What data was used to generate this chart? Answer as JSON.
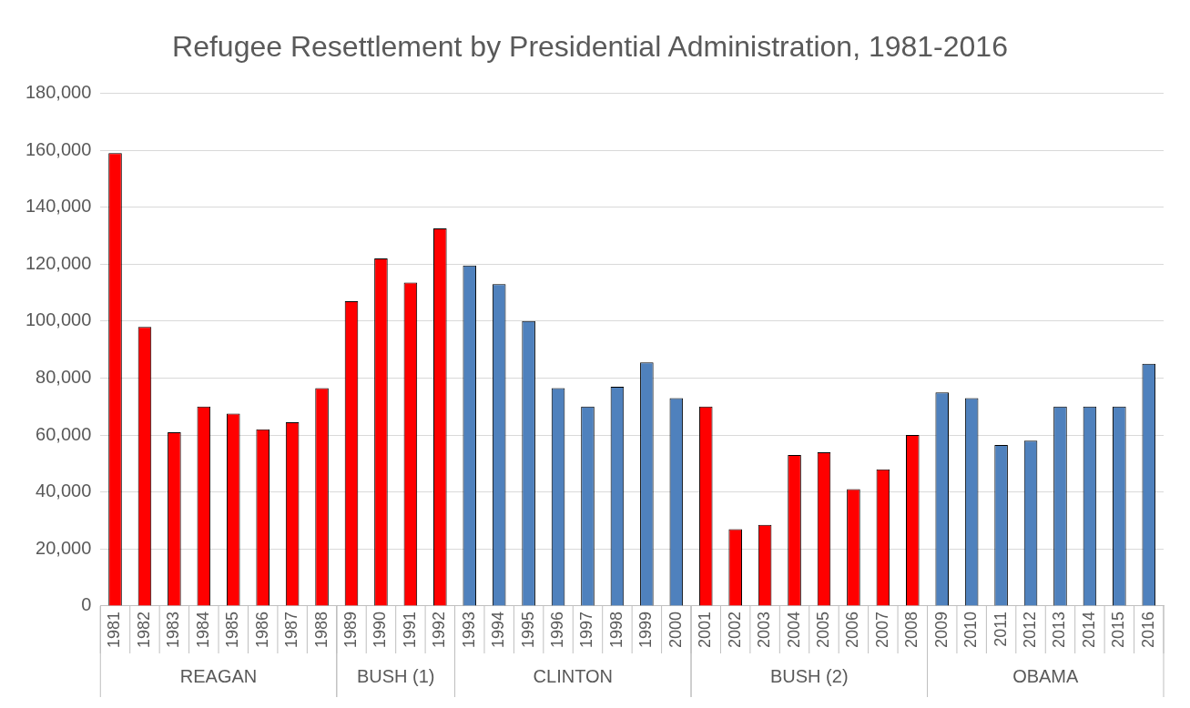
{
  "chart_data": {
    "type": "bar",
    "title": "Refugee Resettlement by Presidential Administration, 1981-2016",
    "categories": [
      "1981",
      "1982",
      "1983",
      "1984",
      "1985",
      "1986",
      "1987",
      "1988",
      "1989",
      "1990",
      "1991",
      "1992",
      "1993",
      "1994",
      "1995",
      "1996",
      "1997",
      "1998",
      "1999",
      "2000",
      "2001",
      "2002",
      "2003",
      "2004",
      "2005",
      "2006",
      "2007",
      "2008",
      "2009",
      "2010",
      "2011",
      "2012",
      "2013",
      "2014",
      "2015",
      "2016"
    ],
    "series": [
      {
        "color": "#ff0000",
        "values": [
          159000,
          98000,
          61000,
          70000,
          67500,
          62000,
          64500,
          76500,
          null,
          null,
          null,
          null,
          null,
          null,
          null,
          null,
          null,
          null,
          null,
          null,
          null,
          null,
          null,
          null,
          null,
          null,
          null,
          null,
          null,
          null,
          null,
          null,
          null,
          null,
          null,
          null
        ]
      },
      {
        "color": "#ff0000",
        "values": [
          null,
          null,
          null,
          null,
          null,
          null,
          null,
          null,
          107000,
          122000,
          113500,
          132500,
          null,
          null,
          null,
          null,
          null,
          null,
          null,
          null,
          null,
          null,
          null,
          null,
          null,
          null,
          null,
          null,
          null,
          null,
          null,
          null,
          null,
          null,
          null,
          null
        ]
      },
      {
        "color": "#4f81bd",
        "values": [
          null,
          null,
          null,
          null,
          null,
          null,
          null,
          null,
          null,
          null,
          null,
          null,
          119500,
          113000,
          100000,
          76500,
          70000,
          77000,
          85500,
          73000,
          null,
          null,
          null,
          null,
          null,
          null,
          null,
          null,
          null,
          null,
          null,
          null,
          null,
          null,
          null,
          null
        ]
      },
      {
        "color": "#ff0000",
        "values": [
          null,
          null,
          null,
          null,
          null,
          null,
          null,
          null,
          null,
          null,
          null,
          null,
          null,
          null,
          null,
          null,
          null,
          null,
          null,
          null,
          70000,
          27000,
          28500,
          53000,
          54000,
          41000,
          48000,
          60000,
          null,
          null,
          null,
          null,
          null,
          null,
          null,
          null
        ]
      },
      {
        "color": "#4f81bd",
        "values": [
          null,
          null,
          null,
          null,
          null,
          null,
          null,
          null,
          null,
          null,
          null,
          null,
          null,
          null,
          null,
          null,
          null,
          null,
          null,
          null,
          null,
          null,
          null,
          null,
          null,
          null,
          null,
          null,
          75000,
          73000,
          56500,
          58000,
          70000,
          70000,
          70000,
          85000
        ]
      }
    ],
    "ylim": [
      0,
      180000
    ],
    "yticks": [
      0,
      {
        "value": 20000,
        "label": "20,000"
      },
      {
        "value": 40000,
        "label": "40,000"
      },
      {
        "value": 60000,
        "label": "60,000"
      },
      {
        "value": 80000,
        "label": "80,000"
      },
      {
        "value": 100000,
        "label": "100,000"
      },
      {
        "value": 120000,
        "label": "120,000"
      },
      {
        "value": 140000,
        "label": "140,000"
      },
      {
        "value": 160000,
        "label": "160,000"
      },
      {
        "value": 180000,
        "label": "180,000"
      }
    ],
    "annotations": [
      "REAGAN",
      "BUSH (1)",
      "CLINTON",
      "BUSH (2)",
      "OBAMA"
    ],
    "grid": "y",
    "legend": false
  }
}
